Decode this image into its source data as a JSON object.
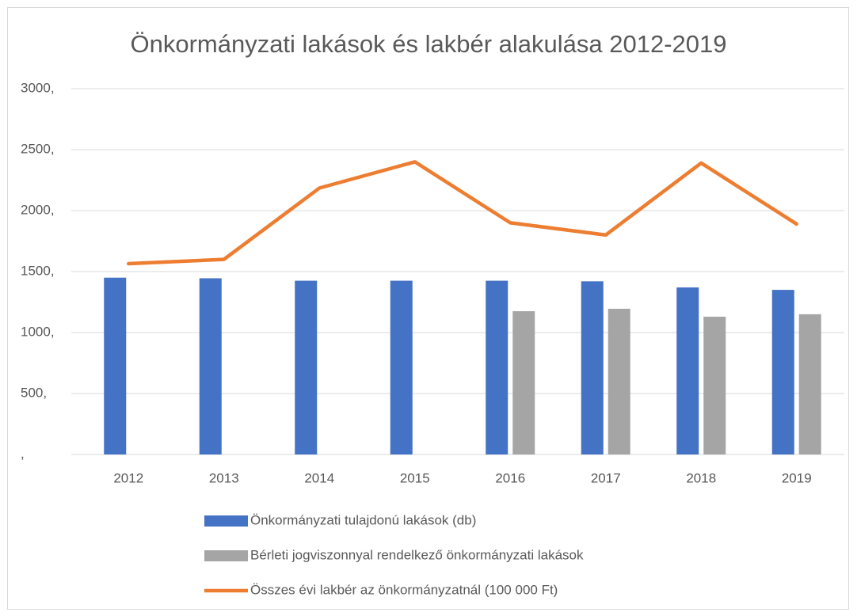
{
  "chart_data": {
    "type": "bar",
    "title": "Önkormányzati lakások és lakbér alakulása 2012-2019",
    "categories": [
      "2012",
      "2013",
      "2014",
      "2015",
      "2016",
      "2017",
      "2018",
      "2019"
    ],
    "series": [
      {
        "name": "Önkormányzati tulajdonú lakások (db)",
        "color": "#4472c4",
        "type": "bar",
        "values": [
          1450,
          1445,
          1425,
          1425,
          1425,
          1420,
          1370,
          1350
        ]
      },
      {
        "name": "Bérleti jogviszonnyal rendelkező önkormányzati lakások",
        "color": "#a5a5a5",
        "type": "bar",
        "values": [
          null,
          null,
          null,
          null,
          1175,
          1195,
          1130,
          1150
        ]
      },
      {
        "name": "Összes évi lakbér az önkormányzatnál (100 000 Ft)",
        "color": "#ed7d31",
        "type": "line",
        "values": [
          1565,
          1600,
          2185,
          2400,
          1900,
          1800,
          2390,
          1890
        ]
      }
    ],
    "ylim": [
      0,
      3000
    ],
    "yticks": [
      {
        "value": 0,
        "label": ","
      },
      {
        "value": 500,
        "label": "500,"
      },
      {
        "value": 1000,
        "label": "1000,"
      },
      {
        "value": 1500,
        "label": "1500,"
      },
      {
        "value": 2000,
        "label": "2000,"
      },
      {
        "value": 2500,
        "label": "2500,"
      },
      {
        "value": 3000,
        "label": "3000,"
      }
    ],
    "grid": true,
    "legend": "bottom"
  }
}
